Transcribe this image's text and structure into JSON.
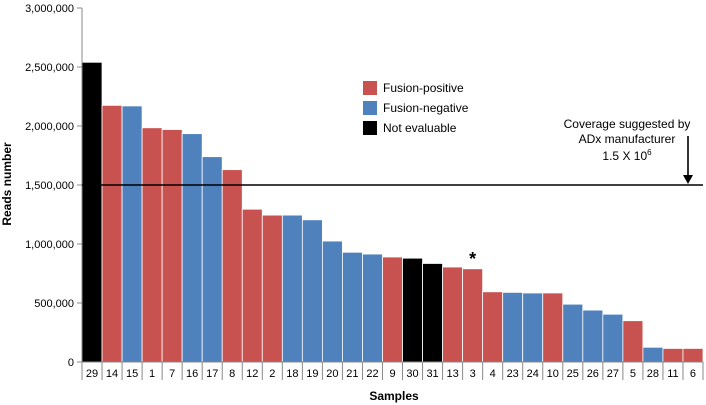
{
  "chart_data": {
    "type": "bar",
    "xlabel": "Samples",
    "ylabel": "Reads number",
    "ylim": [
      0,
      3000000
    ],
    "yticks": [
      0,
      500000,
      1000000,
      1500000,
      2000000,
      2500000,
      3000000
    ],
    "ytick_labels": [
      "0",
      "500,000",
      "1,000,000",
      "1,500,000",
      "2,000,000",
      "2,500,000",
      "3,000,000"
    ],
    "categories": [
      "29",
      "14",
      "15",
      "1",
      "7",
      "16",
      "17",
      "8",
      "12",
      "2",
      "18",
      "19",
      "20",
      "21",
      "22",
      "9",
      "30",
      "31",
      "13",
      "3",
      "4",
      "23",
      "24",
      "10",
      "25",
      "26",
      "27",
      "5",
      "28",
      "11",
      "6"
    ],
    "values": [
      2540000,
      2175000,
      2170000,
      1985000,
      1970000,
      1935000,
      1740000,
      1630000,
      1295000,
      1245000,
      1245000,
      1205000,
      1025000,
      930000,
      915000,
      890000,
      880000,
      835000,
      805000,
      790000,
      595000,
      590000,
      585000,
      585000,
      490000,
      440000,
      405000,
      350000,
      125000,
      115000,
      115000
    ],
    "groups": [
      "not-evaluable",
      "positive",
      "negative",
      "positive",
      "positive",
      "negative",
      "negative",
      "positive",
      "positive",
      "positive",
      "negative",
      "negative",
      "negative",
      "negative",
      "negative",
      "positive",
      "not-evaluable",
      "not-evaluable",
      "positive",
      "positive",
      "positive",
      "negative",
      "negative",
      "positive",
      "negative",
      "negative",
      "negative",
      "positive",
      "negative",
      "positive",
      "positive"
    ],
    "legend": {
      "placement": "upper-middle",
      "entries": [
        {
          "key": "positive",
          "label": "Fusion-positive",
          "color": "#C85250"
        },
        {
          "key": "negative",
          "label": "Fusion-negative",
          "color": "#4F81BD"
        },
        {
          "key": "not-evaluable",
          "label": "Not evaluable",
          "color": "#000000"
        }
      ]
    },
    "threshold": {
      "value": 1500000,
      "label_lines": [
        "Coverage suggested by",
        "ADx manufacturer"
      ],
      "label_value": "1.5 X 10",
      "label_exp": "6"
    },
    "annotations": [
      {
        "text": "*",
        "category": "3"
      }
    ],
    "grid": false
  }
}
